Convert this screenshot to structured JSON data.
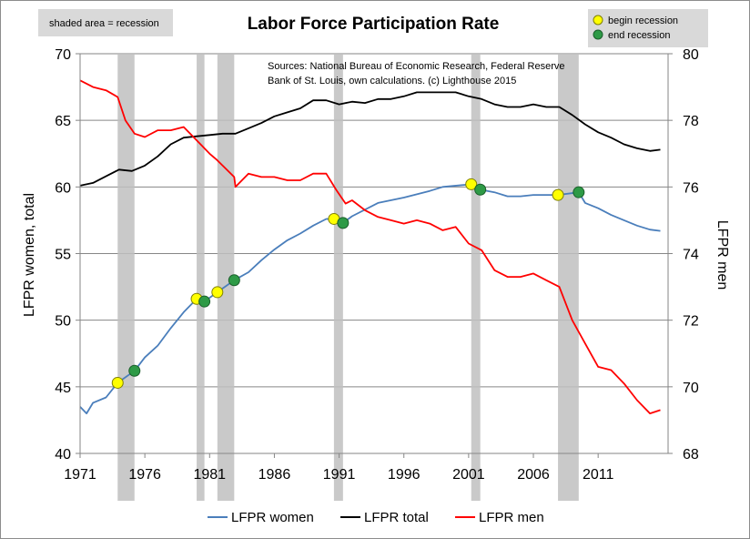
{
  "chart_data": {
    "type": "line",
    "title": "Labor Force Participation Rate",
    "shaded_note": "shaded area = recession",
    "source_lines": [
      "Sources: National Bureau of Economic Research, Federal Reserve",
      "Bank of St. Louis, own calculations. (c) Lighthouse 2015"
    ],
    "marker_legend": {
      "begin": "begin recession",
      "end": "end recession"
    },
    "ylabel_left": "LFPR women, total",
    "ylabel_right": "LFPR men",
    "xlim": [
      1971,
      2016.4
    ],
    "ylim_left": [
      40,
      70
    ],
    "ylim_right": [
      68,
      80
    ],
    "x_ticks": [
      "1971",
      "1976",
      "1981",
      "1986",
      "1991",
      "1996",
      "2001",
      "2006",
      "2011"
    ],
    "y_left_ticks": [
      "40",
      "45",
      "50",
      "55",
      "60",
      "65",
      "70"
    ],
    "y_right_ticks": [
      "68",
      "70",
      "72",
      "74",
      "76",
      "78",
      "80"
    ],
    "grid": "horizontal",
    "legend_position": "bottom",
    "recessions": [
      [
        1973.9,
        1975.2
      ],
      [
        1980.0,
        1980.6
      ],
      [
        1981.6,
        1982.9
      ],
      [
        1990.6,
        1991.3
      ],
      [
        2001.2,
        2001.9
      ],
      [
        2007.9,
        2009.5
      ]
    ],
    "begin_markers": [
      [
        1973.9,
        45.3
      ],
      [
        1980.0,
        51.6
      ],
      [
        1981.6,
        52.1
      ],
      [
        1990.6,
        57.6
      ],
      [
        2001.2,
        60.2
      ],
      [
        2007.9,
        59.4
      ]
    ],
    "end_markers": [
      [
        1975.2,
        46.2
      ],
      [
        1980.6,
        51.4
      ],
      [
        1982.9,
        53.0
      ],
      [
        1991.3,
        57.3
      ],
      [
        2001.9,
        59.8
      ],
      [
        2009.5,
        59.6
      ]
    ],
    "series": [
      {
        "name": "LFPR women",
        "axis": "left",
        "color": "#4a7ebb",
        "x": [
          1971,
          1971.5,
          1972,
          1973,
          1973.9,
          1975.2,
          1976,
          1977,
          1978,
          1979,
          1980,
          1980.6,
          1981.6,
          1982.9,
          1984,
          1985,
          1986,
          1987,
          1988,
          1989,
          1990,
          1990.6,
          1991.3,
          1992,
          1994,
          1996,
          1998,
          1999,
          2001.2,
          2001.9,
          2003,
          2004,
          2005,
          2006,
          2007.9,
          2009.5,
          2010,
          2011,
          2012,
          2013,
          2014,
          2015,
          2015.8
        ],
        "values": [
          43.5,
          43.0,
          43.8,
          44.2,
          45.3,
          46.2,
          47.2,
          48.1,
          49.4,
          50.6,
          51.6,
          51.4,
          52.1,
          53.0,
          53.6,
          54.5,
          55.3,
          56.0,
          56.5,
          57.1,
          57.6,
          57.6,
          57.3,
          57.8,
          58.8,
          59.2,
          59.7,
          60.0,
          60.2,
          59.8,
          59.6,
          59.3,
          59.3,
          59.4,
          59.4,
          59.6,
          58.8,
          58.4,
          57.9,
          57.5,
          57.1,
          56.8,
          56.7
        ]
      },
      {
        "name": "LFPR total",
        "axis": "left",
        "color": "#000000",
        "x": [
          1971,
          1972,
          1973,
          1974,
          1975,
          1976,
          1977,
          1978,
          1979,
          1980,
          1981,
          1982,
          1983,
          1984,
          1985,
          1986,
          1987,
          1988,
          1989,
          1990,
          1991,
          1992,
          1993,
          1994,
          1995,
          1996,
          1997,
          1998,
          1999,
          2000,
          2001,
          2002,
          2003,
          2004,
          2005,
          2006,
          2007,
          2008,
          2009,
          2010,
          2011,
          2012,
          2013,
          2014,
          2015,
          2015.8
        ],
        "values": [
          60.1,
          60.3,
          60.8,
          61.3,
          61.2,
          61.6,
          62.3,
          63.2,
          63.7,
          63.8,
          63.9,
          64.0,
          64.0,
          64.4,
          64.8,
          65.3,
          65.6,
          65.9,
          66.5,
          66.5,
          66.2,
          66.4,
          66.3,
          66.6,
          66.6,
          66.8,
          67.1,
          67.1,
          67.1,
          67.1,
          66.8,
          66.6,
          66.2,
          66.0,
          66.0,
          66.2,
          66.0,
          66.0,
          65.4,
          64.7,
          64.1,
          63.7,
          63.2,
          62.9,
          62.7,
          62.8
        ]
      },
      {
        "name": "LFPR men",
        "axis": "right",
        "color": "#ff0000",
        "x": [
          1971,
          1972,
          1973,
          1973.9,
          1974.5,
          1975.2,
          1976,
          1977,
          1978,
          1979,
          1980,
          1981,
          1981.6,
          1982.9,
          1983,
          1984,
          1985,
          1986,
          1987,
          1988,
          1989,
          1990,
          1990.8,
          1991.5,
          1992,
          1993,
          1994,
          1995,
          1996,
          1997,
          1998,
          1999,
          2000,
          2001,
          2002,
          2003,
          2004,
          2005,
          2006,
          2007,
          2008,
          2009,
          2010,
          2011,
          2012,
          2013,
          2014,
          2015,
          2015.8
        ],
        "values": [
          79.2,
          79.0,
          78.9,
          78.7,
          78.0,
          77.6,
          77.5,
          77.7,
          77.7,
          77.8,
          77.4,
          77.0,
          76.8,
          76.3,
          76.0,
          76.4,
          76.3,
          76.3,
          76.2,
          76.2,
          76.4,
          76.4,
          75.9,
          75.5,
          75.6,
          75.3,
          75.1,
          75.0,
          74.9,
          75.0,
          74.9,
          74.7,
          74.8,
          74.3,
          74.1,
          73.5,
          73.3,
          73.3,
          73.4,
          73.2,
          73.0,
          72.0,
          71.3,
          70.6,
          70.5,
          70.1,
          69.6,
          69.2,
          69.3
        ]
      }
    ]
  }
}
